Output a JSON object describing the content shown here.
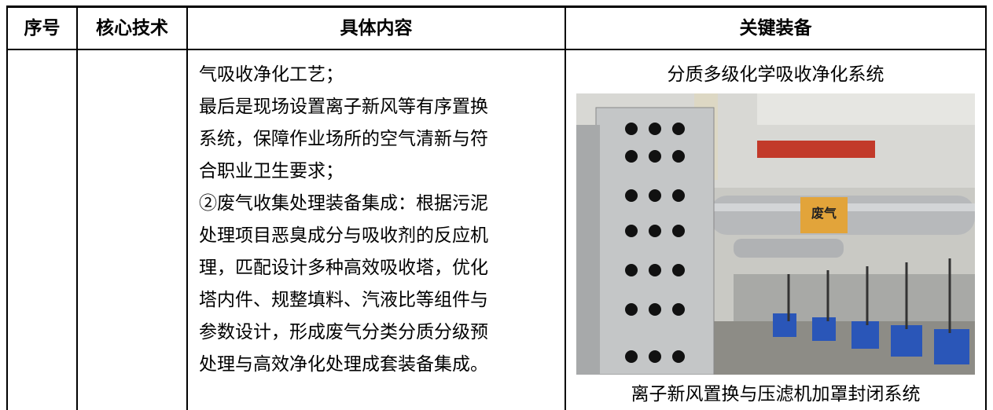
{
  "header": {
    "columns": [
      "序号",
      "核心技术",
      "具体内容",
      "关键装备"
    ]
  },
  "rows": [
    {
      "content": {
        "lines": [
          "气吸收净化工艺；",
          "最后是现场设置离子新风等有序置换",
          "系统，保障作业场所的空气清新与符",
          "合职业卫生要求；",
          "②废气收集处理装备集成：根据污泥",
          "处理项目恶臭成分与吸收剂的反应机",
          "理，匹配设计多种高效吸收塔，优化",
          "塔内件、规整填料、汽液比等组件与",
          "参数设计，形成废气分类分质分级预",
          "处理与高效净化处理成套装备集成。"
        ]
      },
      "equipment": {
        "captions": [
          "分质多级化学吸收净化系统",
          "离子新风置换与压滤机加罩封闭系统"
        ],
        "photo_label": "废气"
      }
    }
  ]
}
